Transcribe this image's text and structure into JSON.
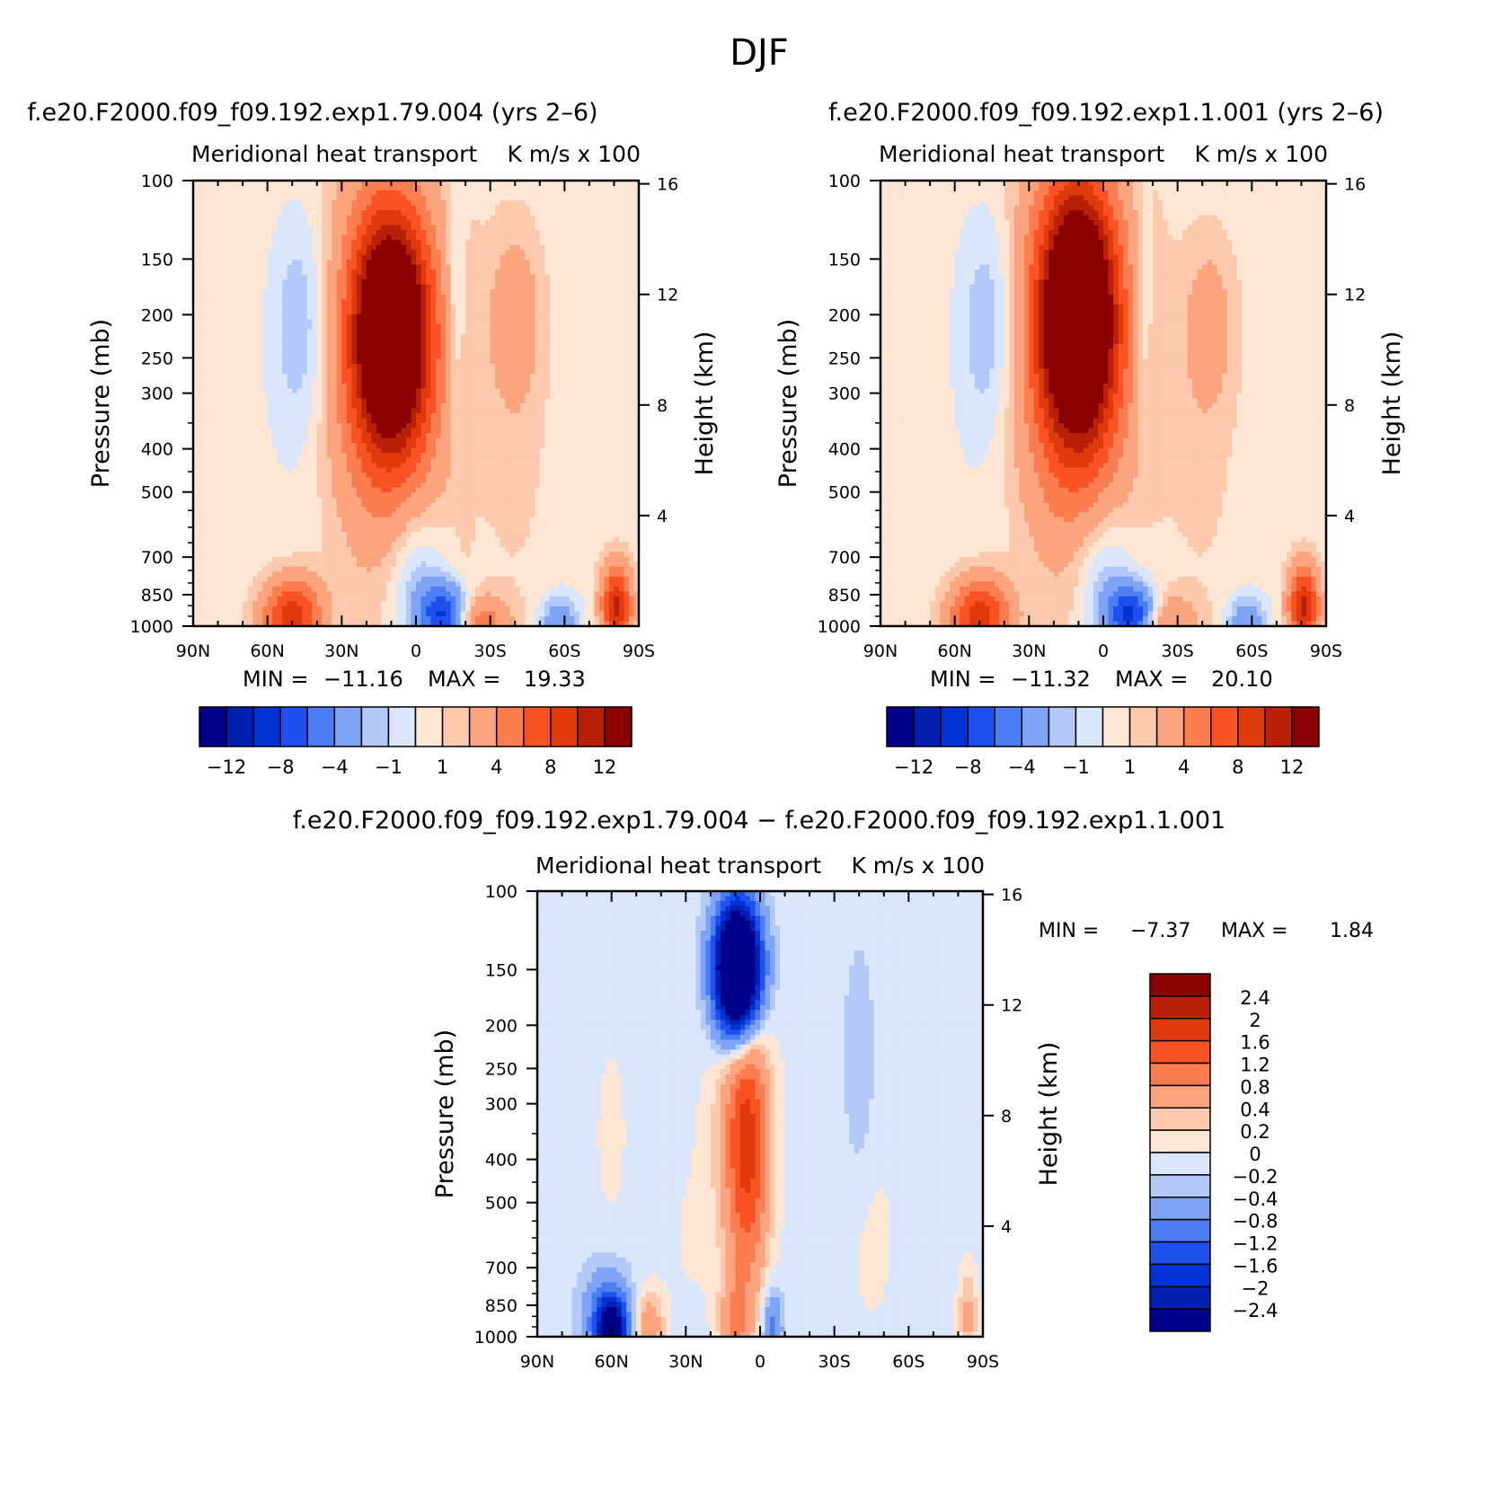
{
  "figure_title": "DJF",
  "contour_levels": {
    "main": [
      -14,
      -12,
      -10,
      -8,
      -6,
      -4,
      -2,
      -1,
      0,
      1,
      2,
      4,
      6,
      8,
      10,
      12,
      14
    ],
    "diff": [
      -2.8,
      -2.4,
      -2,
      -1.6,
      -1.2,
      -0.8,
      -0.4,
      -0.2,
      0,
      0.2,
      0.4,
      0.8,
      1.2,
      1.6,
      2,
      2.4,
      2.8
    ]
  },
  "colors": [
    "#00008b",
    "#0020b0",
    "#0033d6",
    "#1e50f0",
    "#4a7ef2",
    "#7fa4f5",
    "#b3c9f8",
    "#d9e6fb",
    "#fde6d3",
    "#fcc9ac",
    "#fca47e",
    "#fb7d50",
    "#fa5222",
    "#e03a0c",
    "#b82008",
    "#8b0000"
  ],
  "panels": [
    {
      "case_title": "f.e20.F2000.f09_f09.192.exp1.79.004 (yrs 2–6)",
      "plot_title": "Meridional heat transport",
      "units": "K m/s x 100",
      "min_label": "MIN =",
      "min_value": "−11.16",
      "max_label": "MAX =",
      "max_value": "19.33",
      "colorbar_labels": [
        "−12",
        "−8",
        "−4",
        "−1",
        "1",
        "4",
        "8",
        "12"
      ]
    },
    {
      "case_title": "f.e20.F2000.f09_f09.192.exp1.1.001 (yrs 2–6)",
      "plot_title": "Meridional heat transport",
      "units": "K m/s x 100",
      "min_label": "MIN =",
      "min_value": "−11.32",
      "max_label": "MAX =",
      "max_value": "20.10",
      "colorbar_labels": [
        "−12",
        "−8",
        "−4",
        "−1",
        "1",
        "4",
        "8",
        "12"
      ]
    },
    {
      "case_title": "f.e20.F2000.f09_f09.192.exp1.79.004 − f.e20.F2000.f09_f09.192.exp1.1.001",
      "plot_title": "Meridional heat transport",
      "units": "K m/s x 100",
      "min_label": "MIN =",
      "min_value": "−7.37",
      "max_label": "MAX =",
      "max_value": "1.84",
      "colorbar_labels": [
        "2.4",
        "2",
        "1.6",
        "1.2",
        "0.8",
        "0.4",
        "0.2",
        "0",
        "−0.2",
        "−0.4",
        "−0.8",
        "−1.2",
        "−1.6",
        "−2",
        "−2.4"
      ]
    }
  ],
  "chart_data": [
    {
      "type": "heatmap",
      "title": "Meridional heat transport",
      "units": "K m/s x 100",
      "xlabel": "",
      "ylabel": "Pressure (mb)",
      "ylabel_right": "Height (km)",
      "x_ticks": [
        "90N",
        "60N",
        "30N",
        "0",
        "30S",
        "60S",
        "90S"
      ],
      "y_ticks": [
        "100",
        "150",
        "200",
        "250",
        "300",
        "400",
        "500",
        "700",
        "850",
        "1000"
      ],
      "y_ticks_right": [
        "16",
        "12",
        "8",
        "4"
      ],
      "x_range": [
        90,
        -90
      ],
      "y_range": [
        1000,
        100
      ],
      "min": -11.16,
      "max": 19.33,
      "features": [
        {
          "lat": 10,
          "p": 220,
          "value": 16,
          "lat_width": 14,
          "p_width": 160
        },
        {
          "lat": 12,
          "p": 260,
          "value": 7,
          "lat_width": 24,
          "p_width": 450
        },
        {
          "lat": -40,
          "p": 200,
          "value": 2.5,
          "lat_width": 10,
          "p_width": 110
        },
        {
          "lat": -40,
          "p": 380,
          "value": 0.8,
          "lat_width": 14,
          "p_width": 500
        },
        {
          "lat": 46,
          "p": 210,
          "value": -2.8,
          "lat_width": 12,
          "p_width": 170
        },
        {
          "lat": -16,
          "p": 190,
          "value": -2,
          "lat_width": 4,
          "p_width": 150
        },
        {
          "lat": 30,
          "p": 500,
          "value": -0.6,
          "lat_width": 35,
          "p_width": 700
        },
        {
          "lat": -12,
          "p": 950,
          "value": -11.16,
          "lat_width": 10,
          "p_width": 160
        },
        {
          "lat": 0,
          "p": 760,
          "value": -3,
          "lat_width": 12,
          "p_width": 340
        },
        {
          "lat": 50,
          "p": 960,
          "value": 9,
          "lat_width": 12,
          "p_width": 220
        },
        {
          "lat": -22,
          "p": 980,
          "value": 6,
          "lat_width": 14,
          "p_width": 150
        },
        {
          "lat": -58,
          "p": 980,
          "value": -4,
          "lat_width": 8,
          "p_width": 150
        },
        {
          "lat": -81,
          "p": 900,
          "value": 10,
          "lat_width": 6,
          "p_width": 200
        },
        {
          "lat": -20,
          "p": 600,
          "value": 0.4,
          "lat_width": 3,
          "p_width": 250
        }
      ],
      "background": 0.5
    },
    {
      "type": "heatmap",
      "title": "Meridional heat transport",
      "units": "K m/s x 100",
      "xlabel": "",
      "ylabel": "Pressure (mb)",
      "ylabel_right": "Height (km)",
      "x_ticks": [
        "90N",
        "60N",
        "30N",
        "0",
        "30S",
        "60S",
        "90S"
      ],
      "y_ticks": [
        "100",
        "150",
        "200",
        "250",
        "300",
        "400",
        "500",
        "700",
        "850",
        "1000"
      ],
      "y_ticks_right": [
        "16",
        "12",
        "8",
        "4"
      ],
      "x_range": [
        90,
        -90
      ],
      "y_range": [
        1000,
        100
      ],
      "min": -11.32,
      "max": 20.1,
      "features": [
        {
          "lat": 10,
          "p": 200,
          "value": 17,
          "lat_width": 14,
          "p_width": 160
        },
        {
          "lat": 12,
          "p": 250,
          "value": 7.5,
          "lat_width": 24,
          "p_width": 450
        },
        {
          "lat": -43,
          "p": 210,
          "value": 2.2,
          "lat_width": 10,
          "p_width": 110
        },
        {
          "lat": -40,
          "p": 380,
          "value": 0.8,
          "lat_width": 14,
          "p_width": 500
        },
        {
          "lat": 46,
          "p": 210,
          "value": -2.8,
          "lat_width": 12,
          "p_width": 170
        },
        {
          "lat": -16,
          "p": 200,
          "value": -2,
          "lat_width": 4,
          "p_width": 150
        },
        {
          "lat": 30,
          "p": 500,
          "value": -0.6,
          "lat_width": 35,
          "p_width": 700
        },
        {
          "lat": -12,
          "p": 950,
          "value": -11.32,
          "lat_width": 10,
          "p_width": 160
        },
        {
          "lat": 0,
          "p": 760,
          "value": -3,
          "lat_width": 12,
          "p_width": 340
        },
        {
          "lat": 50,
          "p": 960,
          "value": 9,
          "lat_width": 12,
          "p_width": 220
        },
        {
          "lat": -22,
          "p": 980,
          "value": 5,
          "lat_width": 14,
          "p_width": 150
        },
        {
          "lat": -58,
          "p": 980,
          "value": -4,
          "lat_width": 8,
          "p_width": 150
        },
        {
          "lat": -81,
          "p": 900,
          "value": 10,
          "lat_width": 6,
          "p_width": 200
        }
      ],
      "background": 0.5
    },
    {
      "type": "heatmap",
      "title": "Meridional heat transport",
      "units": "K m/s x 100",
      "xlabel": "",
      "ylabel": "Pressure (mb)",
      "ylabel_right": "Height (km)",
      "x_ticks": [
        "90N",
        "60N",
        "30N",
        "0",
        "30S",
        "60S",
        "90S"
      ],
      "y_ticks": [
        "100",
        "150",
        "200",
        "250",
        "300",
        "400",
        "500",
        "700",
        "850",
        "1000"
      ],
      "y_ticks_right": [
        "16",
        "12",
        "8",
        "4"
      ],
      "x_range": [
        90,
        -90
      ],
      "y_range": [
        1000,
        100
      ],
      "min": -7.37,
      "max": 1.84,
      "features": [
        {
          "lat": 9,
          "p": 150,
          "value": -5.5,
          "lat_width": 9,
          "p_width": 60
        },
        {
          "lat": 5,
          "p": 380,
          "value": 1.4,
          "lat_width": 8,
          "p_width": 380
        },
        {
          "lat": 8,
          "p": 320,
          "value": 0.6,
          "lat_width": 12,
          "p_width": 450
        },
        {
          "lat": 60,
          "p": 970,
          "value": -2.6,
          "lat_width": 6,
          "p_width": 180
        },
        {
          "lat": 62,
          "p": 900,
          "value": -0.8,
          "lat_width": 10,
          "p_width": 260
        },
        {
          "lat": 45,
          "p": 950,
          "value": 0.8,
          "lat_width": 6,
          "p_width": 200
        },
        {
          "lat": 10,
          "p": 930,
          "value": 0.8,
          "lat_width": 6,
          "p_width": 220
        },
        {
          "lat": -5,
          "p": 950,
          "value": -0.9,
          "lat_width": 4,
          "p_width": 200
        },
        {
          "lat": -40,
          "p": 250,
          "value": -0.3,
          "lat_width": 6,
          "p_width": 200
        },
        {
          "lat": -45,
          "p": 600,
          "value": 0.15,
          "lat_width": 12,
          "p_width": 500
        },
        {
          "lat": -84,
          "p": 900,
          "value": 0.6,
          "lat_width": 4,
          "p_width": 250
        },
        {
          "lat": 60,
          "p": 350,
          "value": 0.15,
          "lat_width": 8,
          "p_width": 300
        },
        {
          "lat": 30,
          "p": 600,
          "value": 0.1,
          "lat_width": 10,
          "p_width": 500
        }
      ],
      "background": -0.1
    }
  ]
}
